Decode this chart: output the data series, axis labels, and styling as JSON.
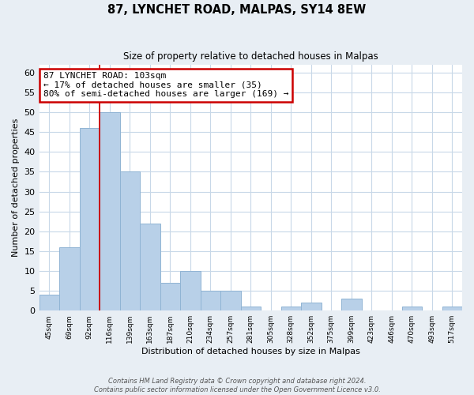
{
  "title": "87, LYNCHET ROAD, MALPAS, SY14 8EW",
  "subtitle": "Size of property relative to detached houses in Malpas",
  "xlabel": "Distribution of detached houses by size in Malpas",
  "ylabel": "Number of detached properties",
  "footer_line1": "Contains HM Land Registry data © Crown copyright and database right 2024.",
  "footer_line2": "Contains public sector information licensed under the Open Government Licence v3.0.",
  "bar_labels": [
    "45sqm",
    "69sqm",
    "92sqm",
    "116sqm",
    "139sqm",
    "163sqm",
    "187sqm",
    "210sqm",
    "234sqm",
    "257sqm",
    "281sqm",
    "305sqm",
    "328sqm",
    "352sqm",
    "375sqm",
    "399sqm",
    "423sqm",
    "446sqm",
    "470sqm",
    "493sqm",
    "517sqm"
  ],
  "bar_values": [
    4,
    16,
    46,
    50,
    35,
    22,
    7,
    10,
    5,
    5,
    1,
    0,
    1,
    2,
    0,
    3,
    0,
    0,
    1,
    0,
    1
  ],
  "bar_color": "#b8d0e8",
  "bar_edge_color": "#90b4d4",
  "ylim": [
    0,
    62
  ],
  "yticks": [
    0,
    5,
    10,
    15,
    20,
    25,
    30,
    35,
    40,
    45,
    50,
    55,
    60
  ],
  "annotation_title": "87 LYNCHET ROAD: 103sqm",
  "annotation_line1": "← 17% of detached houses are smaller (35)",
  "annotation_line2": "80% of semi-detached houses are larger (169) →",
  "annotation_box_color": "#ffffff",
  "annotation_box_edge": "#cc0000",
  "red_line_color": "#cc0000",
  "grid_color": "#c8d8e8",
  "background_color": "#ffffff",
  "fig_background_color": "#e8eef4"
}
